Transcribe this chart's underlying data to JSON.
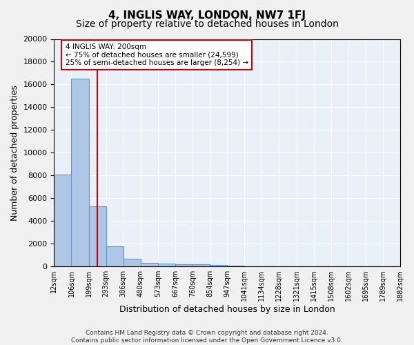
{
  "title1": "4, INGLIS WAY, LONDON, NW7 1FJ",
  "title2": "Size of property relative to detached houses in London",
  "xlabel": "Distribution of detached houses by size in London",
  "ylabel": "Number of detached properties",
  "bin_labels": [
    "12sqm",
    "106sqm",
    "199sqm",
    "293sqm",
    "386sqm",
    "480sqm",
    "573sqm",
    "667sqm",
    "760sqm",
    "854sqm",
    "947sqm",
    "1041sqm",
    "1134sqm",
    "1228sqm",
    "1321sqm",
    "1415sqm",
    "1508sqm",
    "1602sqm",
    "1695sqm",
    "1789sqm",
    "1882sqm"
  ],
  "bar_values": [
    8100,
    16500,
    5300,
    1750,
    700,
    300,
    230,
    200,
    190,
    130,
    50,
    30,
    20,
    15,
    10,
    5,
    3,
    2,
    2,
    1
  ],
  "bar_color": "#aec6e8",
  "bar_edge_color": "#5b9bd5",
  "red_line_index": 2,
  "annotation_text": "4 INGLIS WAY: 200sqm\n← 75% of detached houses are smaller (24,599)\n25% of semi-detached houses are larger (8,254) →",
  "annotation_box_color": "#ffffff",
  "annotation_border_color": "#cc0000",
  "ylim": [
    0,
    20000
  ],
  "yticks": [
    0,
    2000,
    4000,
    6000,
    8000,
    10000,
    12000,
    14000,
    16000,
    18000,
    20000
  ],
  "background_color": "#eaf0f8",
  "fig_background_color": "#f0f0f0",
  "footer_line1": "Contains HM Land Registry data © Crown copyright and database right 2024.",
  "footer_line2": "Contains public sector information licensed under the Open Government Licence v3.0.",
  "title1_fontsize": 11,
  "title2_fontsize": 10,
  "xlabel_fontsize": 9,
  "ylabel_fontsize": 9
}
